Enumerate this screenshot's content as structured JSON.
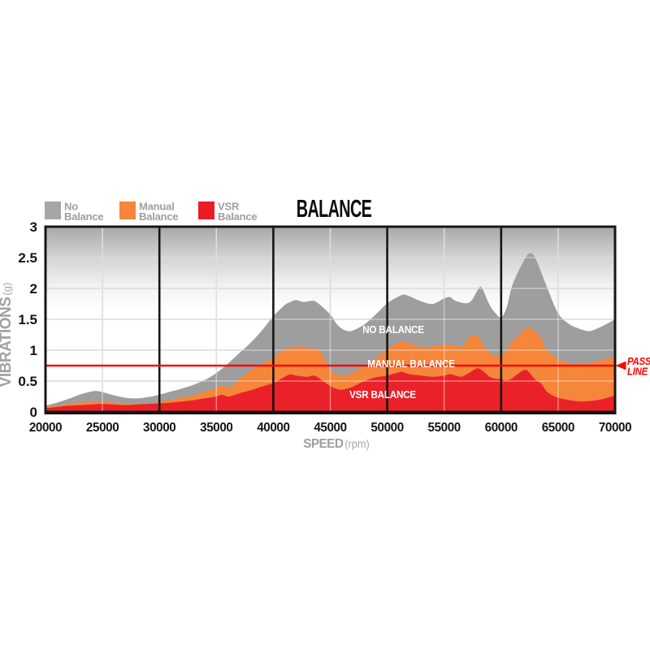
{
  "title": "BALANCE",
  "legend": {
    "items": [
      {
        "line1": "No",
        "line2": "Balance",
        "color": "#a6a6a6"
      },
      {
        "line1": "Manual",
        "line2": "Balance",
        "color": "#f5863a"
      },
      {
        "line1": "VSR",
        "line2": "Balance",
        "color": "#ed1c24"
      }
    ]
  },
  "pass_line": {
    "label_line1": "PASS",
    "label_line2": "LINE",
    "value": 0.75,
    "color": "#fb0505"
  },
  "colors": {
    "axis_text": "#151515",
    "muted_text": "#9e9e9e",
    "grid_minor": "#c6c6c6",
    "grid_major": "#161616",
    "plot_border": "#161616",
    "gradient_top": "#a7a7a7",
    "annotation_text": "#ffffff"
  },
  "chart_data": {
    "type": "area",
    "overlaid": true,
    "title": "BALANCE",
    "xlabel": "SPEED",
    "xlabel_unit": "(rpm)",
    "ylabel": "VIBRATIONS",
    "ylabel_unit": "(g)",
    "xlim": [
      20000,
      70000
    ],
    "ylim": [
      0,
      3
    ],
    "x_ticks": [
      20000,
      25000,
      30000,
      35000,
      40000,
      45000,
      50000,
      55000,
      60000,
      65000,
      70000
    ],
    "y_ticks": [
      0,
      0.5,
      1,
      1.5,
      2,
      2.5,
      3
    ],
    "x_major_gridlines": [
      30000,
      40000,
      50000,
      60000
    ],
    "x_minor_gridlines": [
      25000,
      35000,
      45000,
      55000,
      65000
    ],
    "y_gridlines": [
      0.5,
      1,
      1.5,
      2,
      2.5
    ],
    "annotations": [
      "NO BALANCE",
      "MANUAL BALANCE",
      "VSR BALANCE"
    ],
    "pass_line_value": 0.75,
    "series": [
      {
        "name": "No Balance",
        "color": "#9e9e9e",
        "points": [
          [
            20000,
            0.1
          ],
          [
            21000,
            0.15
          ],
          [
            22000,
            0.21
          ],
          [
            23000,
            0.28
          ],
          [
            24000,
            0.33
          ],
          [
            24500,
            0.34
          ],
          [
            25000,
            0.32
          ],
          [
            26000,
            0.27
          ],
          [
            27000,
            0.23
          ],
          [
            28000,
            0.22
          ],
          [
            29000,
            0.24
          ],
          [
            30000,
            0.28
          ],
          [
            31000,
            0.33
          ],
          [
            32000,
            0.38
          ],
          [
            33000,
            0.44
          ],
          [
            34000,
            0.52
          ],
          [
            35000,
            0.63
          ],
          [
            36000,
            0.78
          ],
          [
            37000,
            0.95
          ],
          [
            38000,
            1.12
          ],
          [
            39000,
            1.32
          ],
          [
            40000,
            1.55
          ],
          [
            41000,
            1.73
          ],
          [
            41500,
            1.78
          ],
          [
            42000,
            1.81
          ],
          [
            42700,
            1.78
          ],
          [
            43500,
            1.8
          ],
          [
            44000,
            1.75
          ],
          [
            45000,
            1.58
          ],
          [
            45500,
            1.44
          ],
          [
            46000,
            1.35
          ],
          [
            46500,
            1.31
          ],
          [
            47000,
            1.32
          ],
          [
            48000,
            1.42
          ],
          [
            49000,
            1.58
          ],
          [
            50000,
            1.76
          ],
          [
            51000,
            1.87
          ],
          [
            51500,
            1.9
          ],
          [
            52000,
            1.87
          ],
          [
            53000,
            1.79
          ],
          [
            54000,
            1.75
          ],
          [
            55000,
            1.84
          ],
          [
            55500,
            1.86
          ],
          [
            56000,
            1.8
          ],
          [
            57000,
            1.76
          ],
          [
            57500,
            1.83
          ],
          [
            58000,
            1.99
          ],
          [
            58300,
            2.01
          ],
          [
            59000,
            1.73
          ],
          [
            59500,
            1.6
          ],
          [
            60000,
            1.53
          ],
          [
            60500,
            1.7
          ],
          [
            61000,
            2.06
          ],
          [
            62000,
            2.45
          ],
          [
            62500,
            2.57
          ],
          [
            63000,
            2.49
          ],
          [
            64000,
            2.03
          ],
          [
            65000,
            1.6
          ],
          [
            66000,
            1.42
          ],
          [
            67000,
            1.34
          ],
          [
            67600,
            1.31
          ],
          [
            68000,
            1.32
          ],
          [
            69000,
            1.4
          ],
          [
            70000,
            1.5
          ]
        ]
      },
      {
        "name": "Manual Balance",
        "color": "#f5863a",
        "points": [
          [
            20000,
            0.08
          ],
          [
            21000,
            0.1
          ],
          [
            22000,
            0.13
          ],
          [
            23000,
            0.15
          ],
          [
            24000,
            0.16
          ],
          [
            25000,
            0.17
          ],
          [
            26000,
            0.15
          ],
          [
            27000,
            0.13
          ],
          [
            28000,
            0.13
          ],
          [
            29000,
            0.14
          ],
          [
            30000,
            0.16
          ],
          [
            31000,
            0.2
          ],
          [
            32000,
            0.23
          ],
          [
            33000,
            0.27
          ],
          [
            34000,
            0.33
          ],
          [
            35000,
            0.39
          ],
          [
            35500,
            0.43
          ],
          [
            36000,
            0.4
          ],
          [
            36500,
            0.43
          ],
          [
            37000,
            0.53
          ],
          [
            38000,
            0.67
          ],
          [
            39000,
            0.77
          ],
          [
            40000,
            0.88
          ],
          [
            40500,
            0.96
          ],
          [
            41000,
            1.02
          ],
          [
            42000,
            1.05
          ],
          [
            42500,
            1.06
          ],
          [
            43000,
            1.04
          ],
          [
            44000,
            1.0
          ],
          [
            44500,
            0.86
          ],
          [
            45000,
            0.68
          ],
          [
            45800,
            0.59
          ],
          [
            46500,
            0.6
          ],
          [
            47000,
            0.64
          ],
          [
            48000,
            0.74
          ],
          [
            49000,
            0.87
          ],
          [
            50000,
            1.02
          ],
          [
            51000,
            1.12
          ],
          [
            51500,
            1.14
          ],
          [
            52000,
            1.11
          ],
          [
            53000,
            1.05
          ],
          [
            54000,
            1.06
          ],
          [
            55000,
            1.09
          ],
          [
            56000,
            1.07
          ],
          [
            56500,
            1.05
          ],
          [
            57000,
            1.16
          ],
          [
            57500,
            1.24
          ],
          [
            58000,
            1.22
          ],
          [
            58500,
            1.05
          ],
          [
            59000,
            0.96
          ],
          [
            59500,
            0.91
          ],
          [
            60000,
            0.93
          ],
          [
            60500,
            1.0
          ],
          [
            61000,
            1.15
          ],
          [
            62000,
            1.32
          ],
          [
            62400,
            1.37
          ],
          [
            63000,
            1.3
          ],
          [
            63500,
            1.2
          ],
          [
            64000,
            1.0
          ],
          [
            65000,
            0.86
          ],
          [
            66000,
            0.79
          ],
          [
            67000,
            0.78
          ],
          [
            68000,
            0.8
          ],
          [
            69000,
            0.85
          ],
          [
            70000,
            0.9
          ]
        ]
      },
      {
        "name": "VSR Balance",
        "color": "#ea2128",
        "points": [
          [
            20000,
            0.06
          ],
          [
            21000,
            0.08
          ],
          [
            22000,
            0.1
          ],
          [
            23000,
            0.11
          ],
          [
            24000,
            0.12
          ],
          [
            25000,
            0.13
          ],
          [
            26000,
            0.12
          ],
          [
            27000,
            0.11
          ],
          [
            28000,
            0.12
          ],
          [
            29000,
            0.13
          ],
          [
            30000,
            0.14
          ],
          [
            31000,
            0.15
          ],
          [
            32000,
            0.17
          ],
          [
            33000,
            0.19
          ],
          [
            34000,
            0.22
          ],
          [
            35000,
            0.25
          ],
          [
            35500,
            0.28
          ],
          [
            36000,
            0.25
          ],
          [
            36500,
            0.27
          ],
          [
            37000,
            0.3
          ],
          [
            38000,
            0.35
          ],
          [
            39000,
            0.41
          ],
          [
            40000,
            0.47
          ],
          [
            41000,
            0.57
          ],
          [
            41500,
            0.61
          ],
          [
            42000,
            0.59
          ],
          [
            43000,
            0.57
          ],
          [
            43500,
            0.59
          ],
          [
            44000,
            0.55
          ],
          [
            45000,
            0.42
          ],
          [
            45800,
            0.36
          ],
          [
            46500,
            0.38
          ],
          [
            47000,
            0.41
          ],
          [
            48000,
            0.5
          ],
          [
            49000,
            0.56
          ],
          [
            50000,
            0.59
          ],
          [
            51000,
            0.64
          ],
          [
            51300,
            0.65
          ],
          [
            52000,
            0.61
          ],
          [
            53000,
            0.59
          ],
          [
            54000,
            0.57
          ],
          [
            55000,
            0.59
          ],
          [
            55500,
            0.61
          ],
          [
            56000,
            0.59
          ],
          [
            56500,
            0.57
          ],
          [
            57000,
            0.61
          ],
          [
            57800,
            0.7
          ],
          [
            58200,
            0.69
          ],
          [
            59000,
            0.57
          ],
          [
            59500,
            0.54
          ],
          [
            60000,
            0.53
          ],
          [
            60500,
            0.51
          ],
          [
            61000,
            0.55
          ],
          [
            61500,
            0.62
          ],
          [
            62200,
            0.68
          ],
          [
            63000,
            0.52
          ],
          [
            63500,
            0.46
          ],
          [
            64000,
            0.33
          ],
          [
            64500,
            0.27
          ],
          [
            65000,
            0.23
          ],
          [
            66000,
            0.19
          ],
          [
            67000,
            0.17
          ],
          [
            68000,
            0.18
          ],
          [
            69000,
            0.21
          ],
          [
            70000,
            0.27
          ]
        ]
      }
    ]
  }
}
